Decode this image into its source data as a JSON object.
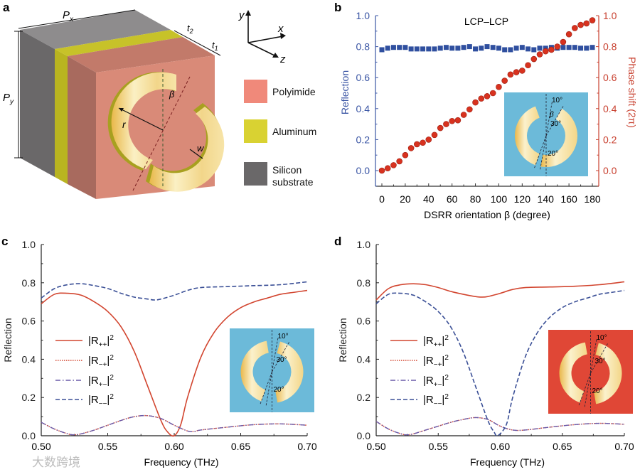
{
  "panel_labels": {
    "a": "a",
    "b": "b",
    "c": "c",
    "d": "d"
  },
  "panel_a": {
    "dimensions": {
      "px": "P",
      "px_sub": "x",
      "py": "P",
      "py_sub": "y",
      "t1": "t",
      "t1_sub": "1",
      "t2": "t",
      "t2_sub": "2",
      "r": "r",
      "w": "w",
      "beta": "β"
    },
    "axes": {
      "x": "x",
      "y": "y",
      "z": "z"
    },
    "legend": [
      {
        "label": "Polyimide",
        "color": "#f0897a"
      },
      {
        "label": "Aluminum",
        "color": "#d9d232"
      },
      {
        "label": "Silicon",
        "label2": "substrate",
        "color": "#6a6869"
      }
    ]
  },
  "watermark": "大数跨境",
  "chart_data": [
    {
      "id": "b",
      "type": "scatter",
      "title": "LCP–LCP",
      "xlabel": "DSRR orientation β (degree)",
      "ylabel": "Reflection",
      "ylabel_right": "Phase shift (2π)",
      "xlim": [
        0,
        180
      ],
      "ylim": [
        0,
        1
      ],
      "xticks": [
        0,
        20,
        40,
        60,
        80,
        100,
        120,
        140,
        160,
        180
      ],
      "yticks": [
        "0.0",
        "0.2",
        "0.4",
        "0.6",
        "0.8",
        "1.0"
      ],
      "yticks_right": [
        "0.0",
        "0.2",
        "0.4",
        "0.6",
        "0.8",
        "1.0"
      ],
      "colors": {
        "left": "#3a55a4",
        "right": "#c8402f",
        "inset": "#6cbad9"
      },
      "inset_labels": [
        "10°",
        "30°",
        "20°",
        "β"
      ],
      "x": [
        0,
        5,
        10,
        15,
        20,
        25,
        30,
        35,
        40,
        45,
        50,
        55,
        60,
        65,
        70,
        75,
        80,
        85,
        90,
        95,
        100,
        105,
        110,
        115,
        120,
        125,
        130,
        135,
        140,
        145,
        150,
        155,
        160,
        165,
        170,
        175,
        180
      ],
      "series": [
        {
          "name": "Reflection",
          "marker": "square",
          "axis": "left",
          "values": [
            0.78,
            0.79,
            0.795,
            0.795,
            0.795,
            0.785,
            0.785,
            0.785,
            0.785,
            0.785,
            0.79,
            0.795,
            0.79,
            0.79,
            0.795,
            0.8,
            0.785,
            0.79,
            0.8,
            0.795,
            0.79,
            0.78,
            0.78,
            0.79,
            0.795,
            0.785,
            0.78,
            0.79,
            0.79,
            0.795,
            0.79,
            0.795,
            0.795,
            0.795,
            0.79,
            0.79,
            0.795
          ]
        },
        {
          "name": "Phase shift",
          "marker": "circle",
          "axis": "right",
          "values": [
            0,
            0.015,
            0.035,
            0.06,
            0.1,
            0.145,
            0.17,
            0.18,
            0.2,
            0.23,
            0.275,
            0.3,
            0.32,
            0.325,
            0.36,
            0.395,
            0.44,
            0.465,
            0.48,
            0.5,
            0.54,
            0.58,
            0.62,
            0.635,
            0.645,
            0.68,
            0.72,
            0.75,
            0.77,
            0.78,
            0.8,
            0.83,
            0.88,
            0.92,
            0.94,
            0.95,
            0.97
          ]
        }
      ]
    },
    {
      "id": "c",
      "type": "line",
      "xlabel": "Frequency (THz)",
      "ylabel": "Reflection",
      "xlim": [
        0.5,
        0.7
      ],
      "ylim": [
        0,
        1
      ],
      "xticks": [
        "0.50",
        "0.55",
        "0.60",
        "0.65",
        "0.70"
      ],
      "yticks": [
        "0.0",
        "0.2",
        "0.4",
        "0.6",
        "0.8",
        "1.0"
      ],
      "legend": [
        {
          "base": "|R",
          "sub": "++",
          "sup": "2"
        },
        {
          "base": "|R",
          "sub": "−+",
          "sup": "2"
        },
        {
          "base": "|R",
          "sub": "+−",
          "sup": "2"
        },
        {
          "base": "|R",
          "sub": "−−",
          "sup": "2"
        }
      ],
      "legend_position": "center-left",
      "inset_color": "#6cbad9",
      "inset_labels": [
        "10°",
        "30°",
        "20°"
      ],
      "series": [
        {
          "name": "|R++|^2",
          "style": "solid",
          "color": "#d2452f",
          "x": [
            0.5,
            0.51,
            0.52,
            0.53,
            0.54,
            0.55,
            0.56,
            0.57,
            0.58,
            0.59,
            0.595,
            0.6,
            0.605,
            0.61,
            0.62,
            0.63,
            0.64,
            0.65,
            0.66,
            0.67,
            0.68,
            0.69,
            0.7
          ],
          "y": [
            0.69,
            0.74,
            0.745,
            0.735,
            0.7,
            0.65,
            0.57,
            0.44,
            0.26,
            0.08,
            0.02,
            0.0,
            0.06,
            0.2,
            0.41,
            0.54,
            0.62,
            0.67,
            0.7,
            0.72,
            0.74,
            0.75,
            0.76
          ]
        },
        {
          "name": "|R-+|^2",
          "style": "dotted",
          "color": "#d2452f",
          "x": [
            0.5,
            0.51,
            0.52,
            0.525,
            0.53,
            0.54,
            0.55,
            0.56,
            0.57,
            0.58,
            0.59,
            0.6,
            0.61,
            0.615,
            0.62,
            0.64,
            0.66,
            0.68,
            0.7
          ],
          "y": [
            0.07,
            0.035,
            0.01,
            0.005,
            0.01,
            0.03,
            0.055,
            0.08,
            0.1,
            0.105,
            0.09,
            0.055,
            0.025,
            0.022,
            0.03,
            0.045,
            0.058,
            0.062,
            0.055
          ]
        },
        {
          "name": "|R+-|^2",
          "style": "dashdot",
          "color": "#6a5aa8",
          "x": [
            0.5,
            0.51,
            0.52,
            0.525,
            0.53,
            0.54,
            0.55,
            0.56,
            0.57,
            0.58,
            0.59,
            0.6,
            0.61,
            0.615,
            0.62,
            0.64,
            0.66,
            0.68,
            0.7
          ],
          "y": [
            0.07,
            0.035,
            0.01,
            0.005,
            0.01,
            0.03,
            0.055,
            0.08,
            0.1,
            0.105,
            0.09,
            0.055,
            0.025,
            0.022,
            0.03,
            0.045,
            0.058,
            0.062,
            0.055
          ]
        },
        {
          "name": "|R--|^2",
          "style": "dashed",
          "color": "#3a4f96",
          "x": [
            0.5,
            0.51,
            0.52,
            0.53,
            0.54,
            0.55,
            0.56,
            0.57,
            0.58,
            0.585,
            0.59,
            0.6,
            0.61,
            0.62,
            0.64,
            0.66,
            0.68,
            0.7
          ],
          "y": [
            0.72,
            0.77,
            0.79,
            0.795,
            0.785,
            0.77,
            0.745,
            0.725,
            0.715,
            0.71,
            0.715,
            0.735,
            0.76,
            0.775,
            0.78,
            0.785,
            0.79,
            0.805
          ]
        }
      ]
    },
    {
      "id": "d",
      "type": "line",
      "xlabel": "Frequency (THz)",
      "ylabel": "Reflection",
      "xlim": [
        0.5,
        0.7
      ],
      "ylim": [
        0,
        1
      ],
      "xticks": [
        "0.50",
        "0.55",
        "0.60",
        "0.65",
        "0.70"
      ],
      "yticks": [
        "0.0",
        "0.2",
        "0.4",
        "0.6",
        "0.8",
        "1.0"
      ],
      "legend": [
        {
          "base": "|R",
          "sub": "++",
          "sup": "2"
        },
        {
          "base": "|R",
          "sub": "−+",
          "sup": "2"
        },
        {
          "base": "|R",
          "sub": "+−",
          "sup": "2"
        },
        {
          "base": "|R",
          "sub": "−−",
          "sup": "2"
        }
      ],
      "legend_position": "center-left",
      "inset_color": "#e04736",
      "inset_labels": [
        "10°",
        "30°",
        "20°"
      ],
      "series": [
        {
          "name": "|R++|^2",
          "style": "solid",
          "color": "#d2452f",
          "x": [
            0.5,
            0.51,
            0.52,
            0.53,
            0.54,
            0.55,
            0.56,
            0.57,
            0.58,
            0.585,
            0.59,
            0.6,
            0.61,
            0.62,
            0.64,
            0.66,
            0.68,
            0.7
          ],
          "y": [
            0.71,
            0.77,
            0.79,
            0.795,
            0.79,
            0.775,
            0.755,
            0.74,
            0.728,
            0.725,
            0.728,
            0.745,
            0.765,
            0.775,
            0.778,
            0.782,
            0.79,
            0.805
          ]
        },
        {
          "name": "|R-+|^2",
          "style": "dotted",
          "color": "#d2452f",
          "x": [
            0.5,
            0.51,
            0.52,
            0.525,
            0.53,
            0.54,
            0.55,
            0.56,
            0.57,
            0.58,
            0.59,
            0.6,
            0.61,
            0.62,
            0.64,
            0.66,
            0.68,
            0.7
          ],
          "y": [
            0.075,
            0.035,
            0.01,
            0.005,
            0.01,
            0.03,
            0.05,
            0.07,
            0.085,
            0.095,
            0.085,
            0.05,
            0.03,
            0.03,
            0.045,
            0.058,
            0.065,
            0.06
          ]
        },
        {
          "name": "|R+-|^2",
          "style": "dashdot",
          "color": "#6a5aa8",
          "x": [
            0.5,
            0.51,
            0.52,
            0.525,
            0.53,
            0.54,
            0.55,
            0.56,
            0.57,
            0.58,
            0.59,
            0.6,
            0.61,
            0.62,
            0.64,
            0.66,
            0.68,
            0.7
          ],
          "y": [
            0.075,
            0.035,
            0.01,
            0.005,
            0.01,
            0.03,
            0.05,
            0.07,
            0.085,
            0.095,
            0.085,
            0.05,
            0.03,
            0.03,
            0.045,
            0.058,
            0.065,
            0.06
          ]
        },
        {
          "name": "|R--|^2",
          "style": "dashed",
          "color": "#3a4f96",
          "x": [
            0.5,
            0.51,
            0.52,
            0.53,
            0.54,
            0.55,
            0.56,
            0.57,
            0.58,
            0.59,
            0.595,
            0.598,
            0.605,
            0.61,
            0.62,
            0.63,
            0.64,
            0.65,
            0.66,
            0.67,
            0.68,
            0.69,
            0.7
          ],
          "y": [
            0.69,
            0.74,
            0.745,
            0.735,
            0.7,
            0.65,
            0.57,
            0.44,
            0.26,
            0.08,
            0.02,
            0.0,
            0.06,
            0.2,
            0.41,
            0.54,
            0.62,
            0.67,
            0.7,
            0.72,
            0.74,
            0.75,
            0.76
          ]
        }
      ]
    }
  ]
}
